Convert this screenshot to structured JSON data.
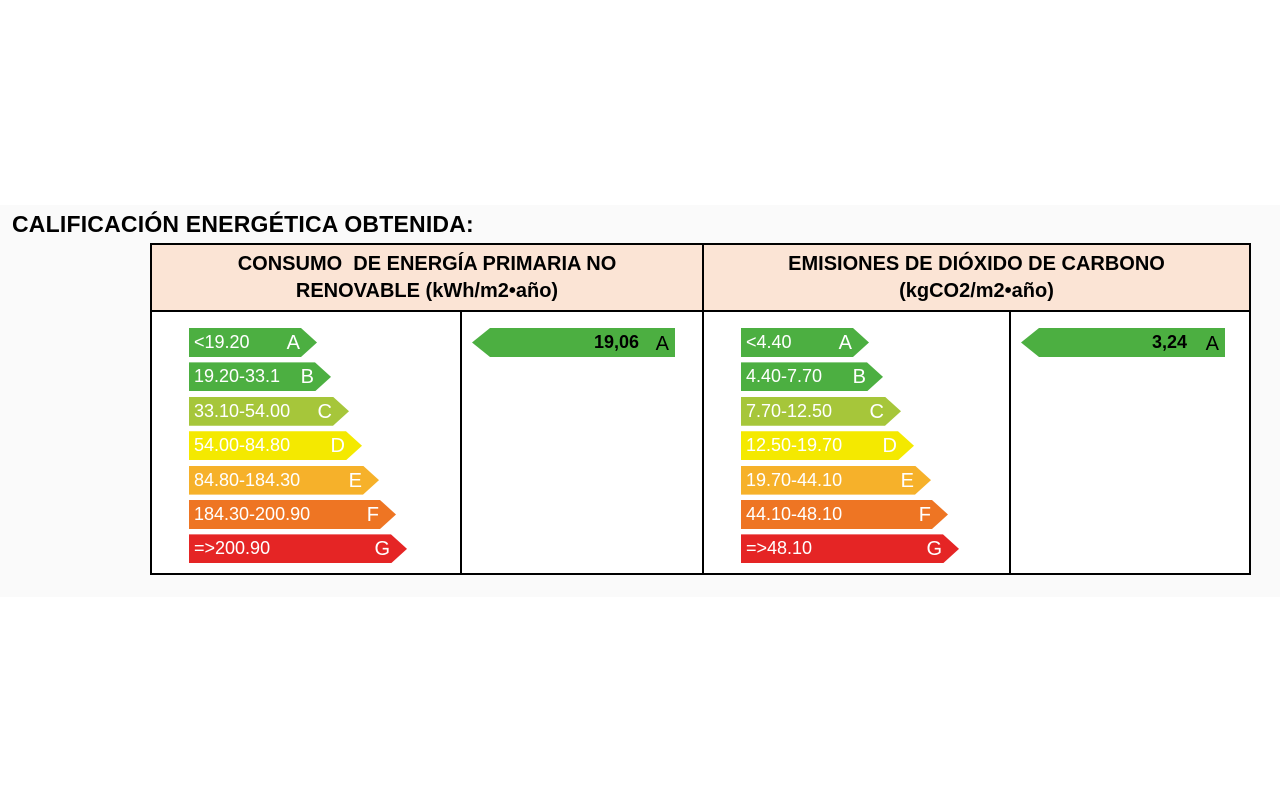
{
  "title": "CALIFICACIÓN ENERGÉTICA OBTENIDA:",
  "chart_data": [
    {
      "type": "bar",
      "title_lines": [
        "CONSUMO  DE ENERGÍA PRIMARIA NO",
        "RENOVABLE (kWh/m2•año)"
      ],
      "bands": [
        {
          "range": "<19.20",
          "letter": "A",
          "color": "#4caf41"
        },
        {
          "range": "19.20-33.1",
          "letter": "B",
          "color": "#4caf41"
        },
        {
          "range": "33.10-54.00",
          "letter": "C",
          "color": "#a6c63a"
        },
        {
          "range": "54.00-84.80",
          "letter": "D",
          "color": "#f4e900"
        },
        {
          "range": "84.80-184.30",
          "letter": "E",
          "color": "#f6b12a"
        },
        {
          "range": "184.30-200.90",
          "letter": "F",
          "color": "#ee7523"
        },
        {
          "range": "=>200.90",
          "letter": "G",
          "color": "#e52525"
        }
      ],
      "result": {
        "value": "19,06",
        "letter": "A",
        "color": "#4caf41"
      }
    },
    {
      "type": "bar",
      "title_lines": [
        "EMISIONES DE DIÓXIDO DE CARBONO",
        "(kgCO2/m2•año)"
      ],
      "bands": [
        {
          "range": "<4.40",
          "letter": "A",
          "color": "#4caf41"
        },
        {
          "range": "4.40-7.70",
          "letter": "B",
          "color": "#4caf41"
        },
        {
          "range": "7.70-12.50",
          "letter": "C",
          "color": "#a6c63a"
        },
        {
          "range": "12.50-19.70",
          "letter": "D",
          "color": "#f4e900"
        },
        {
          "range": "19.70-44.10",
          "letter": "E",
          "color": "#f6b12a"
        },
        {
          "range": "44.10-48.10",
          "letter": "F",
          "color": "#ee7523"
        },
        {
          "range": "=>48.10",
          "letter": "G",
          "color": "#e52525"
        }
      ],
      "result": {
        "value": "3,24",
        "letter": "A",
        "color": "#4caf41"
      }
    }
  ]
}
